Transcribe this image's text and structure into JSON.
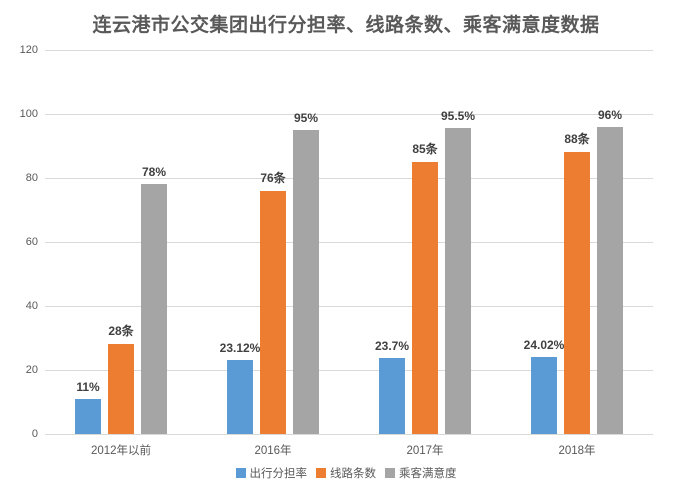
{
  "chart_data": {
    "type": "bar",
    "title": "连云港市公交集团出行分担率、线路条数、乘客满意度数据",
    "categories": [
      "2012年以前",
      "2016年",
      "2017年",
      "2018年"
    ],
    "series": [
      {
        "name": "出行分担率",
        "color": "#5B9BD5",
        "values": [
          11,
          23.12,
          23.7,
          24.02
        ],
        "labels": [
          "11%",
          "23.12%",
          "23.7%",
          "24.02%"
        ]
      },
      {
        "name": "线路条数",
        "color": "#ED7D31",
        "values": [
          28,
          76,
          85,
          88
        ],
        "labels": [
          "28条",
          "76条",
          "85条",
          "88条"
        ]
      },
      {
        "name": "乘客满意度",
        "color": "#A5A5A5",
        "values": [
          78,
          95,
          95.5,
          96
        ],
        "labels": [
          "78%",
          "95%",
          "95.5%",
          "96%"
        ]
      }
    ],
    "ylim": [
      0,
      120
    ],
    "yticks": [
      0,
      20,
      40,
      60,
      80,
      100,
      120
    ],
    "grid": true,
    "legend_position": "bottom",
    "colors": {
      "grid": "#d9d9d9",
      "axis_text": "#595959",
      "data_label_text": "#404040",
      "title_text": "#595959",
      "background": "#ffffff"
    }
  }
}
